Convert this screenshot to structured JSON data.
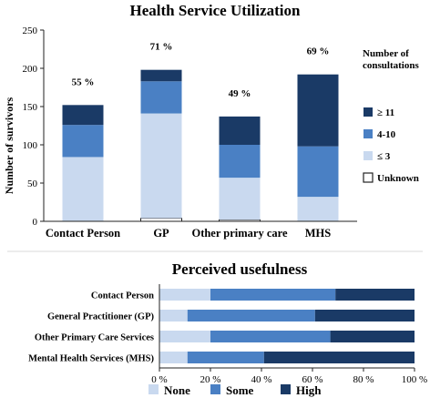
{
  "colors": {
    "low": "#c9d9ef",
    "mid": "#4a80c4",
    "high": "#1a3a66",
    "unknown": "#ffffff",
    "axis": "#222222",
    "divider": "#d8d8d8"
  },
  "chart_data": [
    {
      "type": "bar",
      "stacked": true,
      "title": "Health Service Utilization",
      "ylabel": "Number of survivors",
      "xlabel": "",
      "ylim": [
        0,
        250
      ],
      "yticks": [
        "0",
        "50",
        "100",
        "150",
        "200",
        "250"
      ],
      "categories": [
        "Contact Person",
        "GP",
        "Other primary care",
        "MHS"
      ],
      "percent_labels": [
        "55 %",
        "71 %",
        "49 %",
        "69 %"
      ],
      "legend_title": [
        "Number of",
        "consultations"
      ],
      "legend_placement": "right",
      "series": [
        {
          "name": "Unknown",
          "color_key": "unknown",
          "values": [
            0,
            4,
            2,
            0
          ]
        },
        {
          "name": "≤ 3",
          "color_key": "low",
          "values": [
            84,
            137,
            55,
            32
          ]
        },
        {
          "name": "4-10",
          "color_key": "mid",
          "values": [
            42,
            42,
            43,
            66
          ]
        },
        {
          "name": "≥ 11",
          "color_key": "high",
          "values": [
            26,
            15,
            37,
            94
          ]
        }
      ]
    },
    {
      "type": "bar",
      "orientation": "horizontal",
      "stacked_percent": true,
      "title": "Perceived usefulness",
      "xlim": [
        0,
        100
      ],
      "xticks": [
        "0 %",
        "20 %",
        "40 %",
        "60 %",
        "80 %",
        "100 %"
      ],
      "categories": [
        "Contact Person",
        "General Practitioner (GP)",
        "Other Primary Care Services",
        "Mental Health Services (MHS)"
      ],
      "legend_placement": "bottom-left",
      "series": [
        {
          "name": "None",
          "color_key": "low",
          "values": [
            20,
            11,
            20,
            11
          ]
        },
        {
          "name": "Some",
          "color_key": "mid",
          "values": [
            49,
            50,
            47,
            30
          ]
        },
        {
          "name": "High",
          "color_key": "high",
          "values": [
            31,
            39,
            33,
            59
          ]
        }
      ]
    }
  ]
}
